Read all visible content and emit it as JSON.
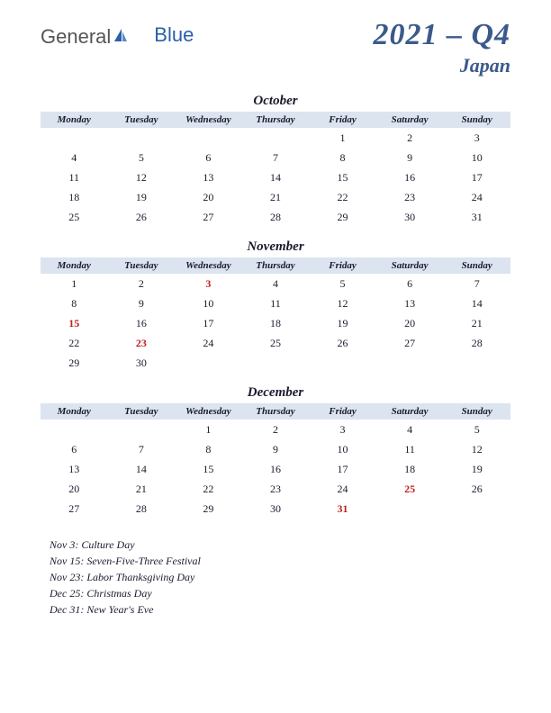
{
  "logo": {
    "part1": "General",
    "part2": "Blue"
  },
  "title": {
    "quarter": "2021 – Q4",
    "country": "Japan"
  },
  "colors": {
    "header_bg": "#dce4f0",
    "title_color": "#3a5a8a",
    "holiday_color": "#c02020",
    "text_color": "#1a1a2e",
    "logo_gray": "#555555",
    "logo_blue": "#2b5fa8"
  },
  "day_headers": [
    "Monday",
    "Tuesday",
    "Wednesday",
    "Thursday",
    "Friday",
    "Saturday",
    "Sunday"
  ],
  "months": [
    {
      "name": "October",
      "weeks": [
        [
          "",
          "",
          "",
          "",
          "1",
          "2",
          "3"
        ],
        [
          "4",
          "5",
          "6",
          "7",
          "8",
          "9",
          "10"
        ],
        [
          "11",
          "12",
          "13",
          "14",
          "15",
          "16",
          "17"
        ],
        [
          "18",
          "19",
          "20",
          "21",
          "22",
          "23",
          "24"
        ],
        [
          "25",
          "26",
          "27",
          "28",
          "29",
          "30",
          "31"
        ]
      ],
      "holidays": []
    },
    {
      "name": "November",
      "weeks": [
        [
          "1",
          "2",
          "3",
          "4",
          "5",
          "6",
          "7"
        ],
        [
          "8",
          "9",
          "10",
          "11",
          "12",
          "13",
          "14"
        ],
        [
          "15",
          "16",
          "17",
          "18",
          "19",
          "20",
          "21"
        ],
        [
          "22",
          "23",
          "24",
          "25",
          "26",
          "27",
          "28"
        ],
        [
          "29",
          "30",
          "",
          "",
          "",
          "",
          ""
        ]
      ],
      "holidays": [
        "3",
        "15",
        "23"
      ]
    },
    {
      "name": "December",
      "weeks": [
        [
          "",
          "",
          "1",
          "2",
          "3",
          "4",
          "5"
        ],
        [
          "6",
          "7",
          "8",
          "9",
          "10",
          "11",
          "12"
        ],
        [
          "13",
          "14",
          "15",
          "16",
          "17",
          "18",
          "19"
        ],
        [
          "20",
          "21",
          "22",
          "23",
          "24",
          "25",
          "26"
        ],
        [
          "27",
          "28",
          "29",
          "30",
          "31",
          "",
          ""
        ]
      ],
      "holidays": [
        "25",
        "31"
      ]
    }
  ],
  "holiday_notes": [
    "Nov 3: Culture Day",
    "Nov 15: Seven-Five-Three Festival",
    "Nov 23: Labor Thanksgiving Day",
    "Dec 25: Christmas Day",
    "Dec 31: New Year's Eve"
  ]
}
